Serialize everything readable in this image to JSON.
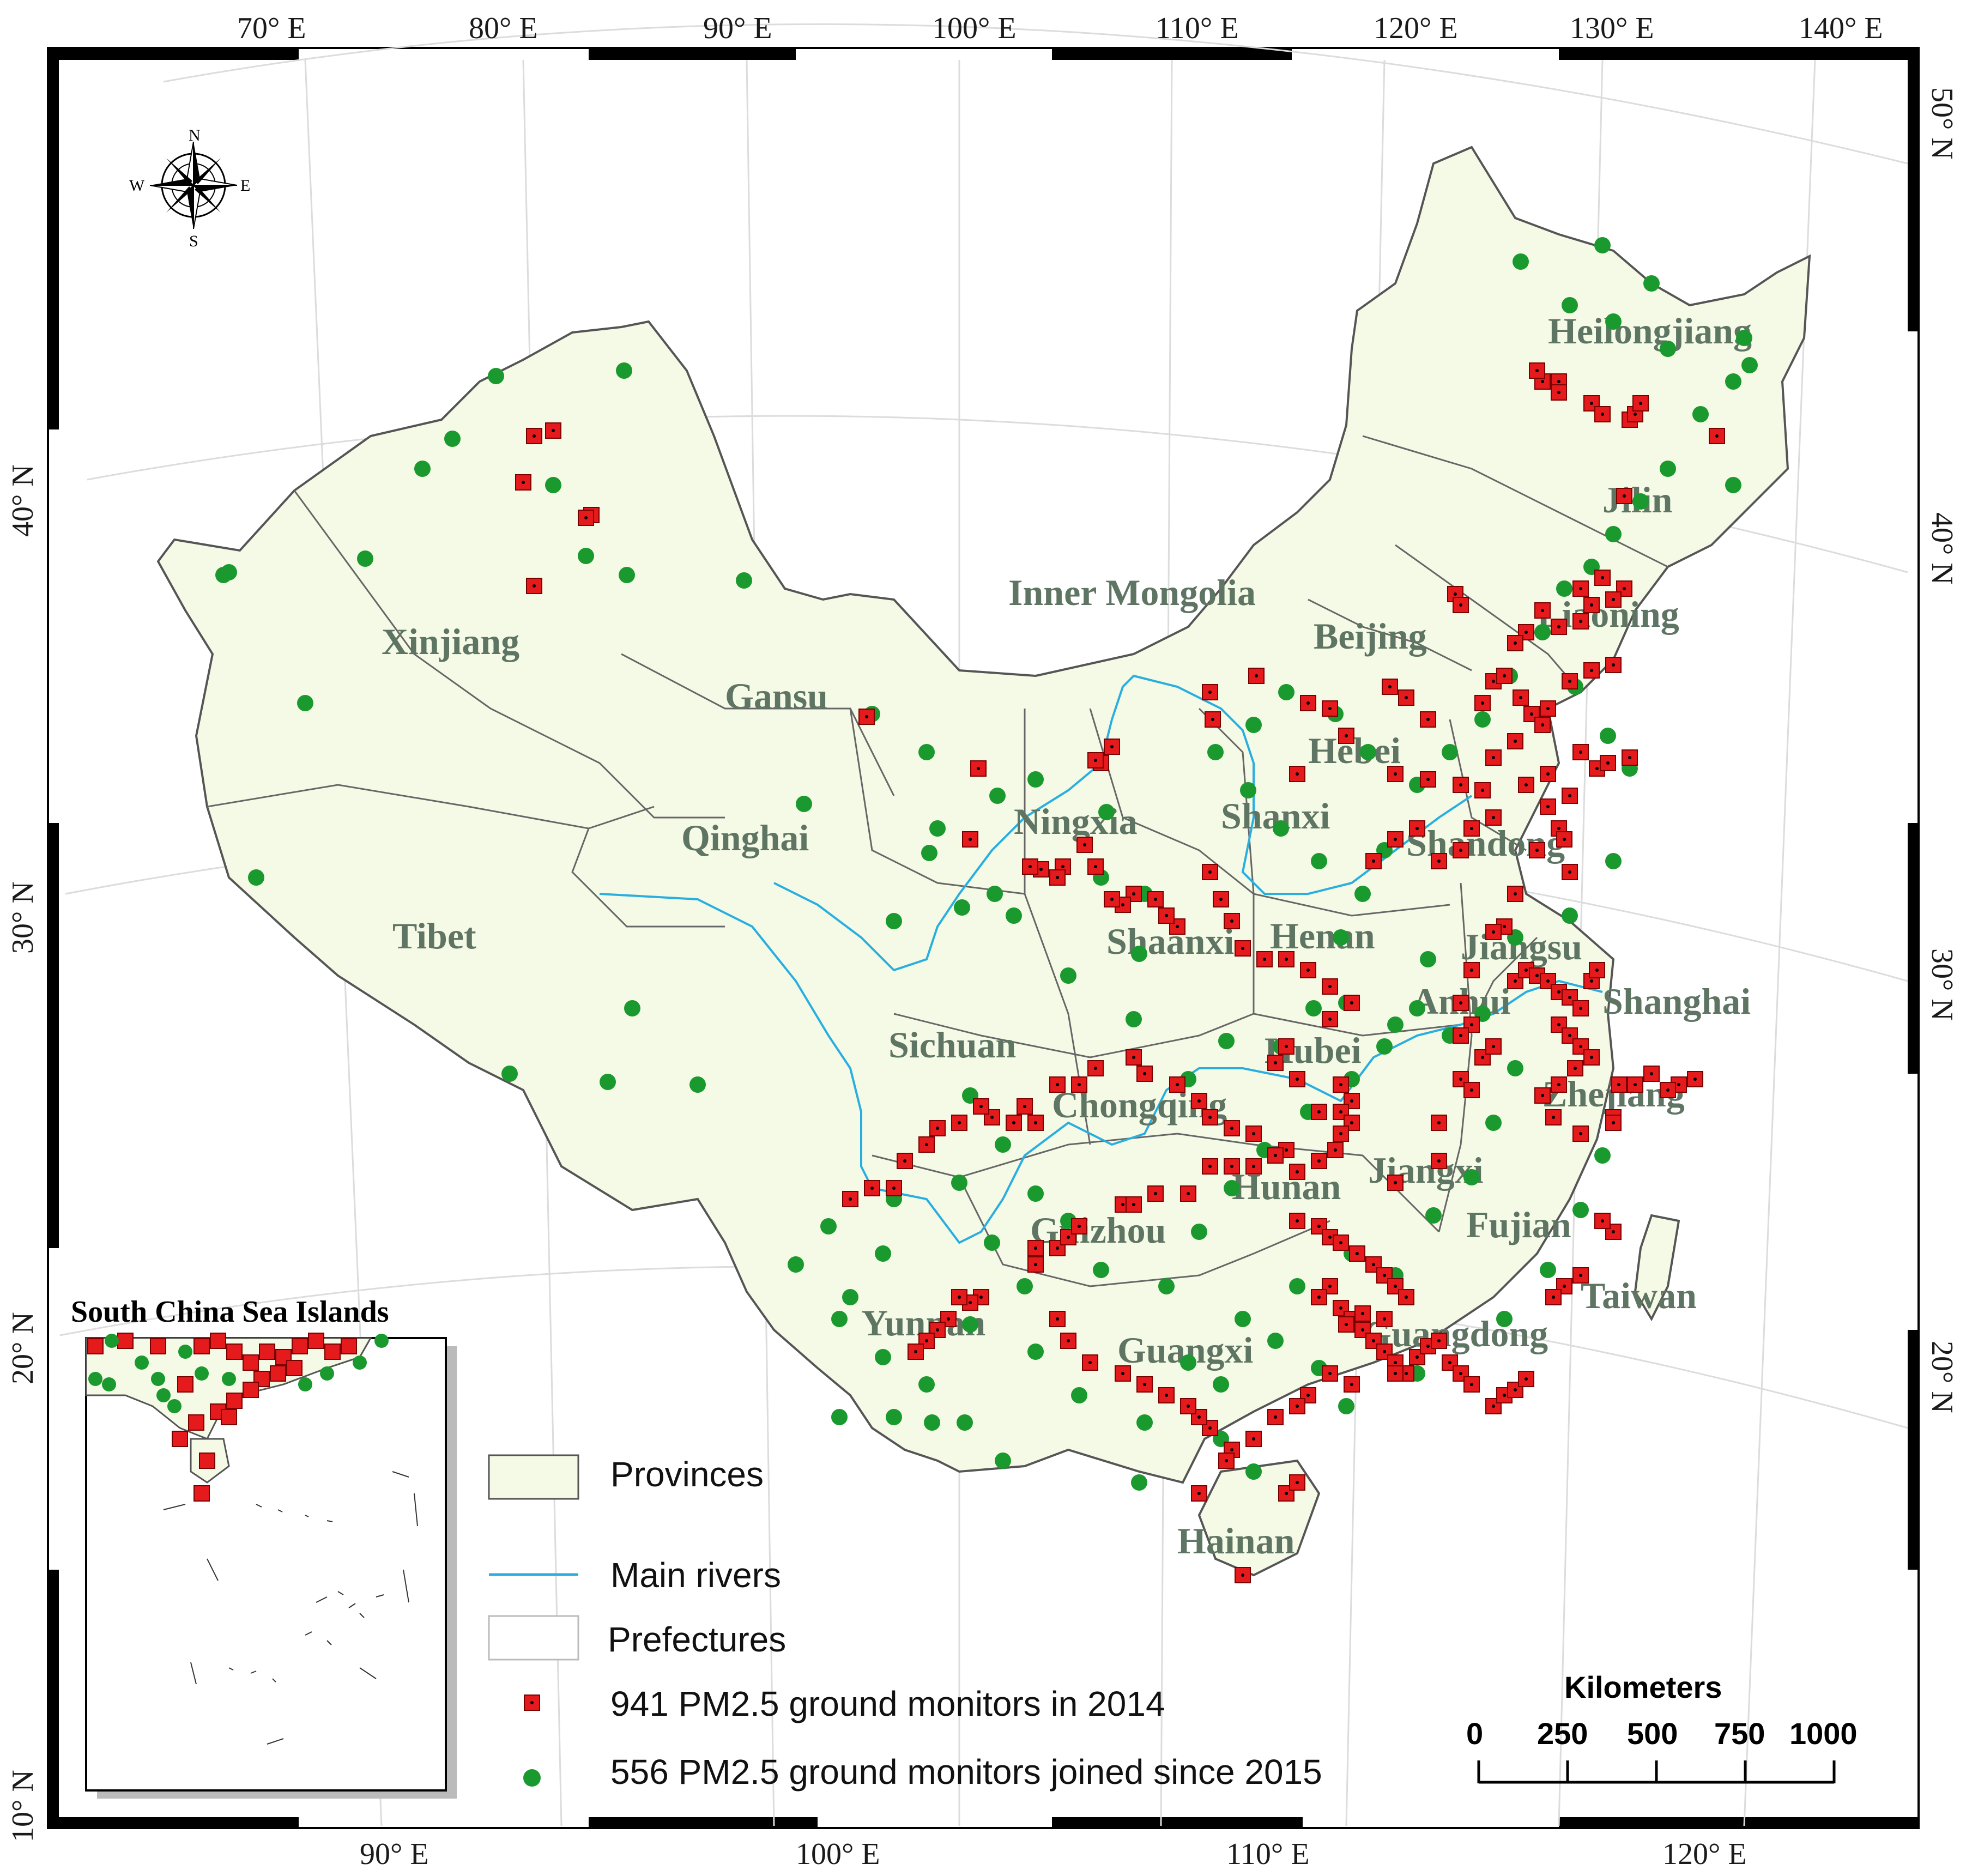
{
  "map": {
    "top_longitude_ticks": [
      "70° E",
      "80° E",
      "90° E",
      "100° E",
      "110° E",
      "120° E",
      "130° E",
      "140° E"
    ],
    "bottom_longitude_ticks": [
      "90° E",
      "100° E",
      "110° E",
      "120° E"
    ],
    "left_latitude_ticks": [
      "40° N",
      "30° N",
      "20° N",
      "10° N"
    ],
    "right_latitude_ticks": [
      "50° N",
      "40° N",
      "30° N",
      "20° N"
    ],
    "compass": {
      "n": "N",
      "s": "S",
      "e": "E",
      "w": "W"
    },
    "provinces": {
      "xinjiang": "Xinjiang",
      "tibet": "Tibet",
      "qinghai": "Qinghai",
      "gansu": "Gansu",
      "inner_mongolia": "Inner Mongolia",
      "heilongjiang": "Heilongjiang",
      "jilin": "Jilin",
      "liaoning": "Liaoning",
      "beijing": "Beijing",
      "hebei": "Hebei",
      "shanxi": "Shanxi",
      "ningxia": "Ningxia",
      "shandong": "Shandong",
      "shaanxi": "Shaanxi",
      "henan": "Henan",
      "jiangsu": "Jiangsu",
      "anhui": "Anhui",
      "shanghai": "Shanghai",
      "sichuan": "Sichuan",
      "hubei": "Hubei",
      "chongqing": "Chongqing",
      "zhejiang": "Zhejiang",
      "jiangxi": "Jiangxi",
      "hunan": "Hunan",
      "guizhou": "Guizhou",
      "fujian": "Fujian",
      "taiwan": "Taiwan",
      "yunnan": "Yunnan",
      "guangdong": "Guangdong",
      "guangxi": "Guangxi",
      "hainan": "Hainan"
    },
    "inset_title": "South China Sea Islands",
    "legend": {
      "provinces": "Provinces",
      "rivers": "Main rivers",
      "prefectures": "Prefectures",
      "monitors_2014": "941 PM2.5 ground monitors in 2014",
      "monitors_2015": "556 PM2.5 ground monitors joined since 2015"
    },
    "scale_bar": {
      "title": "Kilometers",
      "ticks": [
        "0",
        "250",
        "500",
        "750",
        "1000"
      ]
    },
    "colors": {
      "land": "#f5fae6",
      "border": "#555555",
      "river": "#29aee0",
      "monitor_2014": "#e41a1c",
      "monitor_2015": "#1a9a2e",
      "province_label": "#5f7563"
    }
  }
}
